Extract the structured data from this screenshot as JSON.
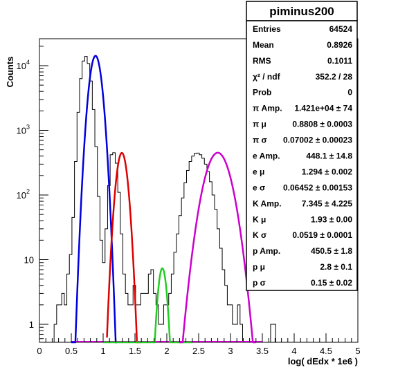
{
  "chart_data": {
    "type": "line",
    "title": "piminus200",
    "xlabel": "log( dEdx * 1e6 )",
    "ylabel": "Counts",
    "xlim": [
      0,
      5
    ],
    "ylim": [
      0.5,
      30000
    ],
    "y_scale": "log",
    "x_ticks": [
      "0",
      "0.5",
      "1",
      "1.5",
      "2",
      "2.5",
      "3",
      "3.5",
      "4",
      "4.5",
      "5"
    ],
    "y_ticks": [
      {
        "value": 1,
        "base": "1",
        "exp": ""
      },
      {
        "value": 10,
        "base": "10",
        "exp": ""
      },
      {
        "value": 100,
        "base": "10",
        "exp": "2"
      },
      {
        "value": 1000,
        "base": "10",
        "exp": "3"
      },
      {
        "value": 10000,
        "base": "10",
        "exp": "4"
      }
    ],
    "histogram": {
      "x": [
        0.25,
        0.29,
        0.33,
        0.37,
        0.41,
        0.45,
        0.49,
        0.53,
        0.57,
        0.61,
        0.65,
        0.69,
        0.73,
        0.77,
        0.81,
        0.85,
        0.89,
        0.93,
        0.97,
        1.01,
        1.05,
        1.09,
        1.13,
        1.17,
        1.21,
        1.25,
        1.29,
        1.33,
        1.37,
        1.41,
        1.45,
        1.49,
        1.53,
        1.57,
        1.61,
        1.65,
        1.69,
        1.73,
        1.77,
        1.81,
        1.85,
        1.89,
        1.93,
        1.97,
        2.01,
        2.05,
        2.09,
        2.13,
        2.17,
        2.21,
        2.25,
        2.29,
        2.33,
        2.37,
        2.41,
        2.45,
        2.49,
        2.53,
        2.57,
        2.61,
        2.65,
        2.69,
        2.73,
        2.77,
        2.81,
        2.85,
        2.89,
        2.93,
        2.97,
        3.01,
        3.05,
        3.09,
        3.13,
        3.17,
        3.21,
        3.25,
        3.29,
        3.33,
        3.37,
        3.41,
        3.45,
        3.49,
        3.53,
        3.57,
        3.61,
        3.65,
        3.69,
        3.73,
        3.77,
        3.81,
        3.85,
        3.89,
        3.93,
        3.97
      ],
      "y": [
        1,
        2,
        2,
        3,
        2,
        6,
        12,
        45,
        330,
        1900,
        6300,
        11800,
        13900,
        10800,
        5800,
        2100,
        560,
        95,
        20,
        9,
        30,
        140,
        420,
        450,
        310,
        110,
        25,
        6,
        3,
        2,
        2,
        4,
        2,
        2,
        3,
        3,
        3,
        6,
        7,
        3,
        2,
        1,
        1,
        2,
        2,
        3,
        6,
        13,
        25,
        48,
        90,
        155,
        240,
        330,
        400,
        440,
        445,
        420,
        370,
        300,
        230,
        160,
        100,
        60,
        30,
        15,
        7,
        4,
        2,
        2,
        1,
        1,
        2,
        1,
        0,
        0,
        0,
        0,
        0,
        0,
        0,
        0,
        0,
        0,
        0,
        1,
        1,
        0,
        0,
        0,
        0,
        0,
        0,
        0
      ]
    },
    "series": [
      {
        "name": "pi",
        "color": "#0000dd",
        "amp": 14210,
        "mu": 0.8808,
        "sigma": 0.07002,
        "range": [
          0.5,
          1.22
        ]
      },
      {
        "name": "e",
        "color": "#dd0000",
        "amp": 448.1,
        "mu": 1.294,
        "sigma": 0.06452,
        "range": [
          1.06,
          1.58
        ]
      },
      {
        "name": "K",
        "color": "#22cc22",
        "amp": 7.345,
        "mu": 1.93,
        "sigma": 0.0519,
        "range": [
          1.0,
          2.4
        ]
      },
      {
        "name": "p",
        "color": "#cc00cc",
        "amp": 450.5,
        "mu": 2.8,
        "sigma": 0.15,
        "range": [
          2.2,
          3.4
        ]
      }
    ],
    "stats": {
      "title": "piminus200",
      "rows": [
        {
          "key": "Entries",
          "value": "64524"
        },
        {
          "key": "Mean",
          "value": "0.8926"
        },
        {
          "key": "RMS",
          "value": "0.1011"
        },
        {
          "key": "χ² / ndf",
          "value": "352.2 / 28"
        },
        {
          "key": "Prob",
          "value": "0"
        },
        {
          "key": "π Amp.",
          "value": "1.421e+04 ± 74"
        },
        {
          "key": "π μ",
          "value": "0.8808 ± 0.0003"
        },
        {
          "key": "π σ",
          "value": "0.07002 ± 0.00023"
        },
        {
          "key": "e Amp.",
          "value": "448.1 ± 14.8"
        },
        {
          "key": "e μ",
          "value": "1.294 ± 0.002"
        },
        {
          "key": "e σ",
          "value": "0.06452 ± 0.00153"
        },
        {
          "key": "K Amp.",
          "value": "7.345 ± 4.225"
        },
        {
          "key": "K μ",
          "value": "1.93 ± 0.00"
        },
        {
          "key": "K σ",
          "value": "0.0519 ± 0.0001"
        },
        {
          "key": "p Amp.",
          "value": "450.5 ± 1.8"
        },
        {
          "key": "p μ",
          "value": "2.8 ± 0.1"
        },
        {
          "key": "p σ",
          "value": "0.15 ± 0.02"
        }
      ]
    }
  }
}
